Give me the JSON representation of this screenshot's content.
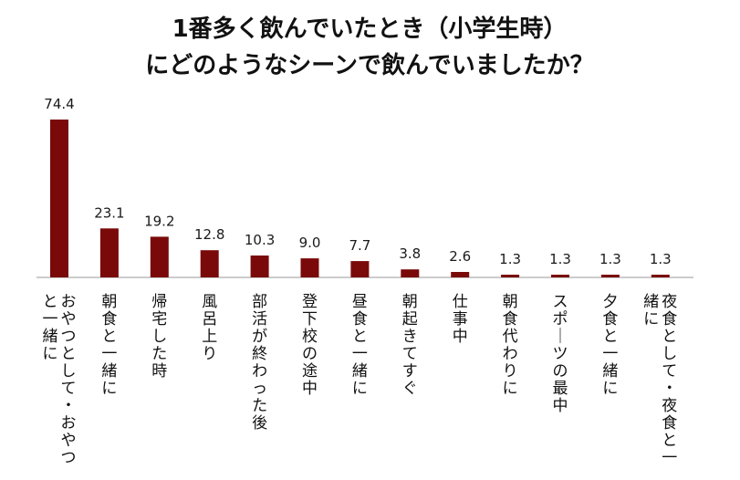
{
  "title_lines": [
    "1番多く飲んでいたとき（小学生時）",
    "にどのようなシーンで飲んでいましたか？"
  ],
  "colors": {
    "bar": "#7a0a0a",
    "axis": "#9a9a9a",
    "text": "#111111"
  },
  "chart_data": {
    "type": "bar",
    "title": "1番多く飲んでいたとき（小学生時）にどのようなシーンで飲んでいましたか？",
    "categories": [
      [
        "おやつとして・おやつ",
        "と一緒に"
      ],
      [
        "朝食と一緒に"
      ],
      [
        "帰宅した時"
      ],
      [
        "風呂上り"
      ],
      [
        "部活が終わった後"
      ],
      [
        "登下校の途中"
      ],
      [
        "昼食と一緒に"
      ],
      [
        "朝起きてすぐ"
      ],
      [
        "仕事中"
      ],
      [
        "朝食代わりに"
      ],
      [
        "スポーツの最中"
      ],
      [
        "夕食と一緒に"
      ],
      [
        "夜食として・夜食と一",
        "緒に"
      ]
    ],
    "values": [
      74.4,
      23.1,
      19.2,
      12.8,
      10.3,
      9.0,
      7.7,
      3.8,
      2.6,
      1.3,
      1.3,
      1.3,
      1.3
    ],
    "value_labels": [
      "74.4",
      "23.1",
      "19.2",
      "12.8",
      "10.3",
      "9.0",
      "7.7",
      "3.8",
      "2.6",
      "1.3",
      "1.3",
      "1.3",
      "1.3"
    ],
    "ylim": [
      0,
      74.4
    ],
    "grid": false,
    "legend": "none"
  }
}
